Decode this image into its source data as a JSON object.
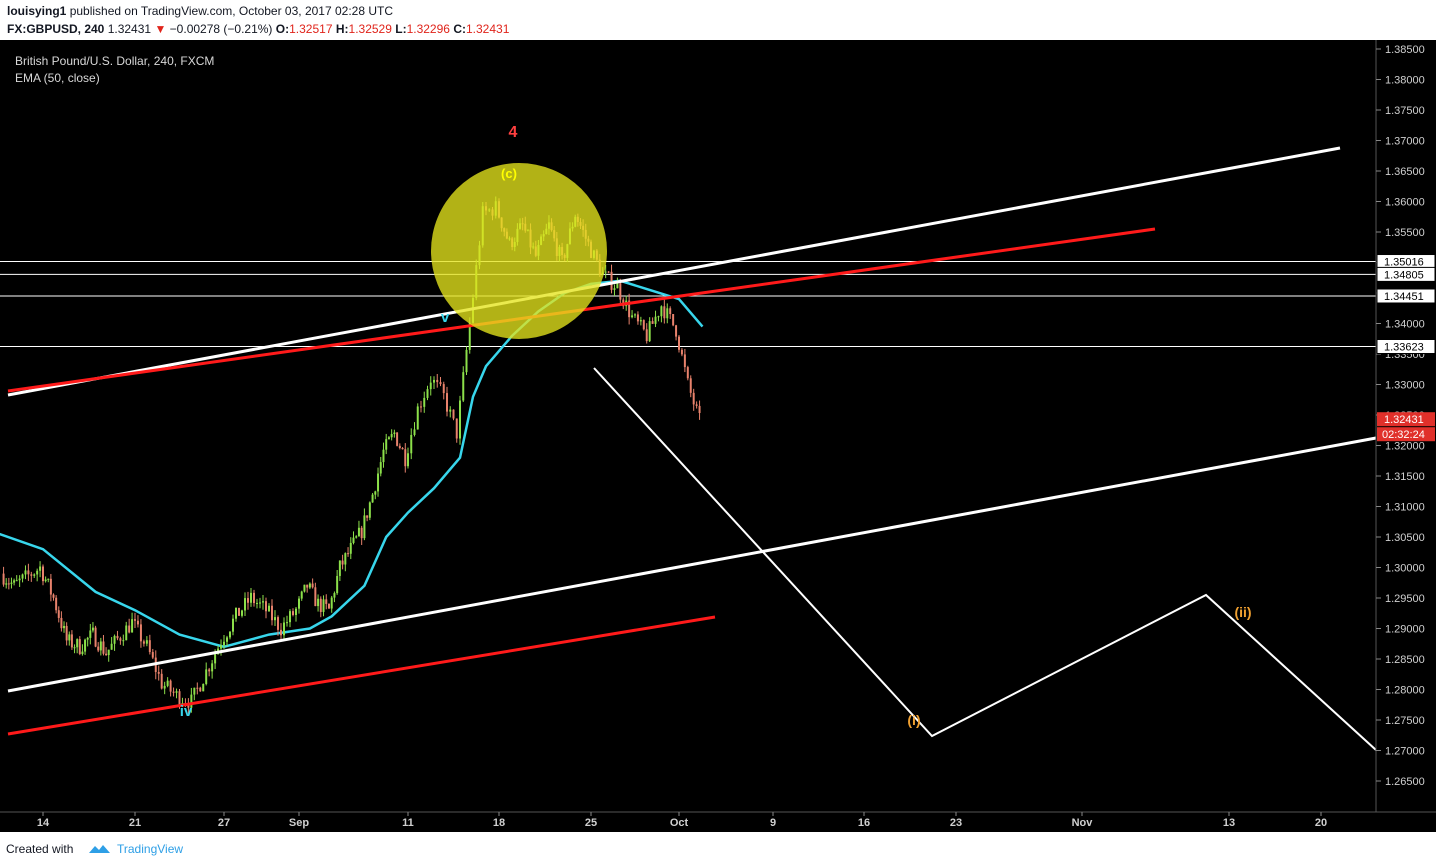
{
  "header": {
    "user": "louisying1",
    "publish_text": "published on TradingView.com, October 03, 2017 02:28 UTC",
    "symbol": "FX:GBPUSD, 240",
    "last": "1.32431",
    "change": "−0.00278 (−0.21%)",
    "o_label": "O:",
    "o_val": "1.32517",
    "h_label": "H:",
    "h_val": "1.32529",
    "l_label": "L:",
    "l_val": "1.32296",
    "c_label": "C:",
    "c_val": "1.32431"
  },
  "legend": {
    "title": "British Pound/U.S. Dollar, 240, FXCM",
    "indicator": "EMA (50, close)"
  },
  "footer": {
    "created_with": "Created with",
    "brand": "TradingView"
  },
  "colors": {
    "background": "#000000",
    "ema": "#38d6ec",
    "up": "#8ce04a",
    "down": "#e8826c",
    "channel_white": "#ffffff",
    "channel_red": "#ff1a1a",
    "highlight": "#e4e41c",
    "wave_orange": "#f0a030",
    "price_tag": "#e0302a"
  },
  "chart_data": {
    "type": "candlestick",
    "symbol": "GBPUSD",
    "timeframe": "240",
    "ylim": [
      1.2616,
      1.3872
    ],
    "y_ticks": [
      "1.38500",
      "1.38000",
      "1.37500",
      "1.37000",
      "1.36500",
      "1.36000",
      "1.35500",
      "1.35000",
      "1.34500",
      "1.34000",
      "1.33500",
      "1.33000",
      "1.32500",
      "1.32000",
      "1.31500",
      "1.31000",
      "1.30500",
      "1.30000",
      "1.29500",
      "1.29000",
      "1.28500",
      "1.28000",
      "1.27500",
      "1.27000",
      "1.26500"
    ],
    "x_ticks": [
      "14",
      "21",
      "27",
      "Sep",
      "11",
      "18",
      "25",
      "Oct",
      "9",
      "16",
      "23",
      "Nov",
      "13",
      "20"
    ],
    "horizontal_levels": [
      {
        "label": "1.35016",
        "value": 1.35016
      },
      {
        "label": "1.34805",
        "value": 1.34805
      },
      {
        "label": "1.34451",
        "value": 1.34451
      },
      {
        "label": "1.33623",
        "value": 1.33623
      }
    ],
    "last_price": {
      "label": "1.32431",
      "value": 1.32431,
      "countdown": "02:32:24"
    },
    "price_path": [
      [
        "Aug 11",
        1.299
      ],
      [
        "Aug 12",
        1.297
      ],
      [
        "Aug 14",
        1.3
      ],
      [
        "Aug 15",
        1.295
      ],
      [
        "Aug 16",
        1.288
      ],
      [
        "Aug 17",
        1.287
      ],
      [
        "Aug 18",
        1.289
      ],
      [
        "Aug 19",
        1.286
      ],
      [
        "Aug 21",
        1.291
      ],
      [
        "Aug 22",
        1.287
      ],
      [
        "Aug 23",
        1.281
      ],
      [
        "Aug 24",
        1.279
      ],
      [
        "Aug 25",
        1.278
      ],
      [
        "Aug 26",
        1.283
      ],
      [
        "Aug 27",
        1.288
      ],
      [
        "Aug 28",
        1.292
      ],
      [
        "Aug 29",
        1.295
      ],
      [
        "Aug 30",
        1.293
      ],
      [
        "Aug 31",
        1.29
      ],
      [
        "Sep 1",
        1.293
      ],
      [
        "Sep 2",
        1.297
      ],
      [
        "Sep 3",
        1.294
      ],
      [
        "Sep 4",
        1.293
      ],
      [
        "Sep 5",
        1.3
      ],
      [
        "Sep 6",
        1.303
      ],
      [
        "Sep 7",
        1.306
      ],
      [
        "Sep 8",
        1.312
      ],
      [
        "Sep 9",
        1.319
      ],
      [
        "Sep 10",
        1.322
      ],
      [
        "Sep 11",
        1.318
      ],
      [
        "Sep 12",
        1.326
      ],
      [
        "Sep 13",
        1.331
      ],
      [
        "Sep 14",
        1.328
      ],
      [
        "Sep 15",
        1.322
      ],
      [
        "Sep 16",
        1.34
      ],
      [
        "Sep 17",
        1.358
      ],
      [
        "Sep 18",
        1.359
      ],
      [
        "Sep 19",
        1.353
      ],
      [
        "Sep 20",
        1.356
      ],
      [
        "Sep 21",
        1.351
      ],
      [
        "Sep 22",
        1.356
      ],
      [
        "Sep 23",
        1.35
      ],
      [
        "Sep 24",
        1.358
      ],
      [
        "Sep 25",
        1.353
      ],
      [
        "Sep 26",
        1.348
      ],
      [
        "Sep 27",
        1.346
      ],
      [
        "Sep 28",
        1.341
      ],
      [
        "Sep 29",
        1.338
      ],
      [
        "Sep 30",
        1.343
      ],
      [
        "Oct 1",
        1.339
      ],
      [
        "Oct 2",
        1.33
      ],
      [
        "Oct 3",
        1.324
      ]
    ],
    "ema_path": [
      [
        "Aug 10",
        1.306
      ],
      [
        "Aug 14",
        1.303
      ],
      [
        "Aug 18",
        1.296
      ],
      [
        "Aug 21",
        1.293
      ],
      [
        "Aug 24",
        1.289
      ],
      [
        "Aug 27",
        1.287
      ],
      [
        "Aug 30",
        1.289
      ],
      [
        "Sep 2",
        1.29
      ],
      [
        "Sep 4",
        1.292
      ],
      [
        "Sep 7",
        1.297
      ],
      [
        "Sep 9",
        1.305
      ],
      [
        "Sep 11",
        1.309
      ],
      [
        "Sep 13",
        1.313
      ],
      [
        "Sep 15",
        1.318
      ],
      [
        "Sep 16",
        1.328
      ],
      [
        "Sep 17",
        1.333
      ],
      [
        "Sep 19",
        1.338
      ],
      [
        "Sep 21",
        1.342
      ],
      [
        "Sep 23",
        1.345
      ],
      [
        "Sep 25",
        1.3465
      ],
      [
        "Sep 27",
        1.347
      ],
      [
        "Sep 29",
        1.3455
      ],
      [
        "Oct 1",
        1.344
      ],
      [
        "Oct 3",
        1.3395
      ]
    ],
    "annotations": [
      {
        "text": "4",
        "color": "#ff4040"
      },
      {
        "text": "(c)",
        "color": "#ffff00"
      },
      {
        "text": "v",
        "color": "#38d6ec"
      },
      {
        "text": "iv",
        "color": "#38d6ec"
      },
      {
        "text": "(i)",
        "color": "#f0a030"
      },
      {
        "text": "(ii)",
        "color": "#f0a030"
      }
    ]
  }
}
